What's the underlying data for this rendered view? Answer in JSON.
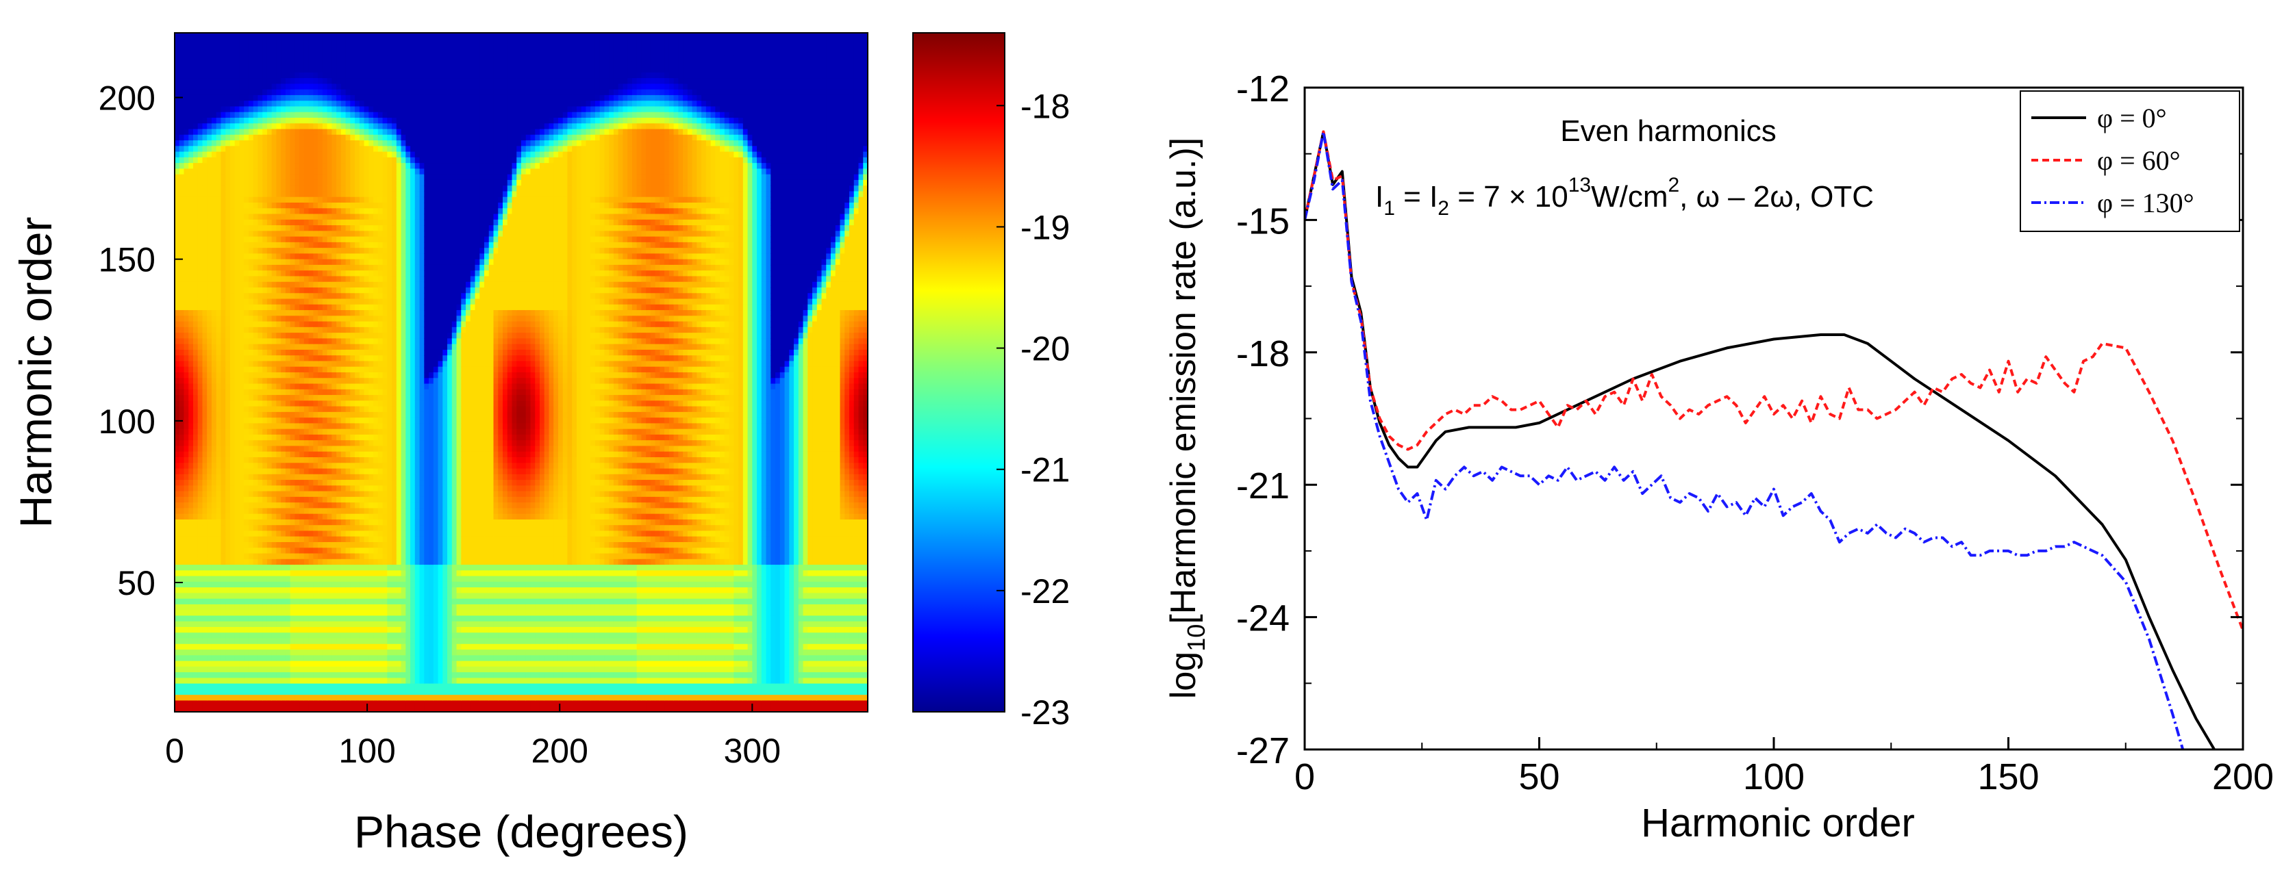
{
  "chart_data": [
    {
      "type": "heatmap",
      "xlabel": "Phase (degrees)",
      "ylabel": "Harmonic order",
      "xlim": [
        0,
        360
      ],
      "ylim": [
        10,
        220
      ],
      "xticks": [
        0,
        100,
        200,
        300
      ],
      "yticks": [
        50,
        100,
        150,
        200
      ],
      "colorbar": {
        "min": -23,
        "max": -17.4,
        "ticks": [
          -18,
          -19,
          -20,
          -21,
          -22,
          -23
        ],
        "colormap": "jet"
      },
      "notes": "log10 harmonic intensity vs. relative phase; pattern periodic with ~180 degree period, intense plateau between harmonic ~20 and cutoff ~170-190"
    },
    {
      "type": "line",
      "title": "Even harmonics",
      "annotation_parts": {
        "i1": "I",
        "sub1": "1",
        "eq1": " = I",
        "sub2": "2",
        "eq2": " = 7 × 10",
        "sup": "13",
        "unit": "W/cm",
        "sup2": "2",
        "fields": ", ω – 2ω, OTC"
      },
      "xlabel": "Harmonic order",
      "ylabel_parts": {
        "a": "log",
        "sub": "10",
        "b": "[Harmonic emission rate (a.u.)]"
      },
      "xlim": [
        0,
        200
      ],
      "ylim": [
        -27,
        -12
      ],
      "xticks": [
        0,
        50,
        100,
        150,
        200
      ],
      "yticks": [
        -12,
        -15,
        -18,
        -21,
        -24,
        -27
      ],
      "legend_position": "top-right",
      "series": [
        {
          "name": "φ = 0°",
          "color": "#000000",
          "dash": "solid",
          "x": [
            0,
            2,
            4,
            6,
            8,
            10,
            12,
            14,
            16,
            18,
            20,
            22,
            24,
            26,
            28,
            30,
            35,
            40,
            45,
            50,
            60,
            70,
            80,
            90,
            100,
            110,
            115,
            120,
            125,
            130,
            140,
            150,
            160,
            170,
            175,
            180,
            185,
            190,
            195
          ],
          "y": [
            -15.0,
            -14.0,
            -13.0,
            -14.2,
            -13.9,
            -16.3,
            -17.1,
            -18.8,
            -19.6,
            -20.1,
            -20.4,
            -20.6,
            -20.6,
            -20.3,
            -20.0,
            -19.8,
            -19.7,
            -19.7,
            -19.7,
            -19.6,
            -19.1,
            -18.6,
            -18.2,
            -17.9,
            -17.7,
            -17.6,
            -17.6,
            -17.8,
            -18.2,
            -18.6,
            -19.3,
            -20.0,
            -20.8,
            -21.9,
            -22.7,
            -24.0,
            -25.2,
            -26.3,
            -27.2
          ]
        },
        {
          "name": "φ = 60°",
          "color": "#ff1a1a",
          "dash": "10,6",
          "x": [
            0,
            2,
            4,
            6,
            8,
            10,
            12,
            14,
            16,
            18,
            20,
            22,
            24,
            26,
            28,
            30,
            32,
            34,
            36,
            38,
            40,
            42,
            44,
            46,
            48,
            50,
            52,
            54,
            56,
            58,
            60,
            62,
            64,
            66,
            68,
            70,
            72,
            74,
            76,
            78,
            80,
            82,
            84,
            86,
            88,
            90,
            92,
            94,
            96,
            98,
            100,
            102,
            104,
            106,
            108,
            110,
            112,
            114,
            116,
            118,
            120,
            122,
            124,
            126,
            128,
            130,
            132,
            134,
            136,
            138,
            140,
            142,
            144,
            146,
            148,
            150,
            152,
            154,
            156,
            158,
            160,
            162,
            164,
            166,
            168,
            170,
            175,
            180,
            185,
            190,
            195,
            200
          ],
          "y": [
            -15.0,
            -14.0,
            -13.0,
            -14.1,
            -14.0,
            -16.4,
            -17.2,
            -18.8,
            -19.5,
            -19.9,
            -20.1,
            -20.2,
            -20.1,
            -19.8,
            -19.6,
            -19.4,
            -19.3,
            -19.4,
            -19.2,
            -19.2,
            -19.0,
            -19.1,
            -19.3,
            -19.3,
            -19.2,
            -19.1,
            -19.4,
            -19.7,
            -19.2,
            -19.3,
            -19.1,
            -19.4,
            -19.0,
            -18.9,
            -19.2,
            -18.6,
            -19.1,
            -18.5,
            -19.0,
            -19.2,
            -19.5,
            -19.3,
            -19.4,
            -19.2,
            -19.1,
            -19.0,
            -19.2,
            -19.6,
            -19.3,
            -19.0,
            -19.4,
            -19.2,
            -19.5,
            -19.1,
            -19.6,
            -19.0,
            -19.4,
            -19.5,
            -18.8,
            -19.3,
            -19.3,
            -19.5,
            -19.4,
            -19.3,
            -19.1,
            -18.9,
            -19.2,
            -18.8,
            -18.9,
            -18.6,
            -18.5,
            -18.7,
            -18.8,
            -18.4,
            -18.9,
            -18.2,
            -18.9,
            -18.6,
            -18.7,
            -18.1,
            -18.4,
            -18.7,
            -18.9,
            -18.2,
            -18.1,
            -17.8,
            -17.9,
            -18.9,
            -20.0,
            -21.4,
            -22.9,
            -24.3
          ]
        },
        {
          "name": "φ = 130°",
          "color": "#1a1aff",
          "dash": "14,5,3,5",
          "x": [
            0,
            2,
            4,
            6,
            8,
            10,
            12,
            14,
            16,
            18,
            20,
            22,
            24,
            26,
            28,
            30,
            32,
            34,
            36,
            38,
            40,
            42,
            44,
            46,
            48,
            50,
            52,
            54,
            56,
            58,
            60,
            62,
            64,
            66,
            68,
            70,
            72,
            74,
            76,
            78,
            80,
            82,
            84,
            86,
            88,
            90,
            92,
            94,
            96,
            98,
            100,
            102,
            104,
            106,
            108,
            110,
            112,
            114,
            116,
            118,
            120,
            122,
            124,
            126,
            128,
            130,
            132,
            134,
            136,
            138,
            140,
            142,
            144,
            146,
            148,
            150,
            152,
            154,
            156,
            158,
            160,
            162,
            164,
            166,
            168,
            170,
            175,
            180,
            185,
            188
          ],
          "y": [
            -15.0,
            -14.1,
            -13.0,
            -14.3,
            -14.1,
            -16.4,
            -17.3,
            -19.1,
            -19.9,
            -20.5,
            -21.1,
            -21.4,
            -21.2,
            -21.8,
            -20.9,
            -21.1,
            -20.8,
            -20.6,
            -20.8,
            -20.7,
            -20.9,
            -20.6,
            -20.7,
            -20.8,
            -20.8,
            -21.0,
            -20.8,
            -20.9,
            -20.6,
            -20.9,
            -20.8,
            -20.7,
            -20.9,
            -20.6,
            -20.9,
            -20.7,
            -21.2,
            -21.0,
            -20.8,
            -21.3,
            -21.4,
            -21.2,
            -21.3,
            -21.6,
            -21.2,
            -21.5,
            -21.4,
            -21.7,
            -21.3,
            -21.5,
            -21.1,
            -21.7,
            -21.5,
            -21.4,
            -21.2,
            -21.6,
            -21.8,
            -22.3,
            -22.1,
            -22.0,
            -22.1,
            -21.9,
            -22.1,
            -22.2,
            -22.0,
            -22.1,
            -22.3,
            -22.2,
            -22.2,
            -22.4,
            -22.3,
            -22.6,
            -22.6,
            -22.5,
            -22.5,
            -22.5,
            -22.6,
            -22.6,
            -22.5,
            -22.5,
            -22.4,
            -22.4,
            -22.3,
            -22.4,
            -22.5,
            -22.6,
            -23.2,
            -24.5,
            -26.2,
            -27.3
          ]
        }
      ]
    }
  ]
}
